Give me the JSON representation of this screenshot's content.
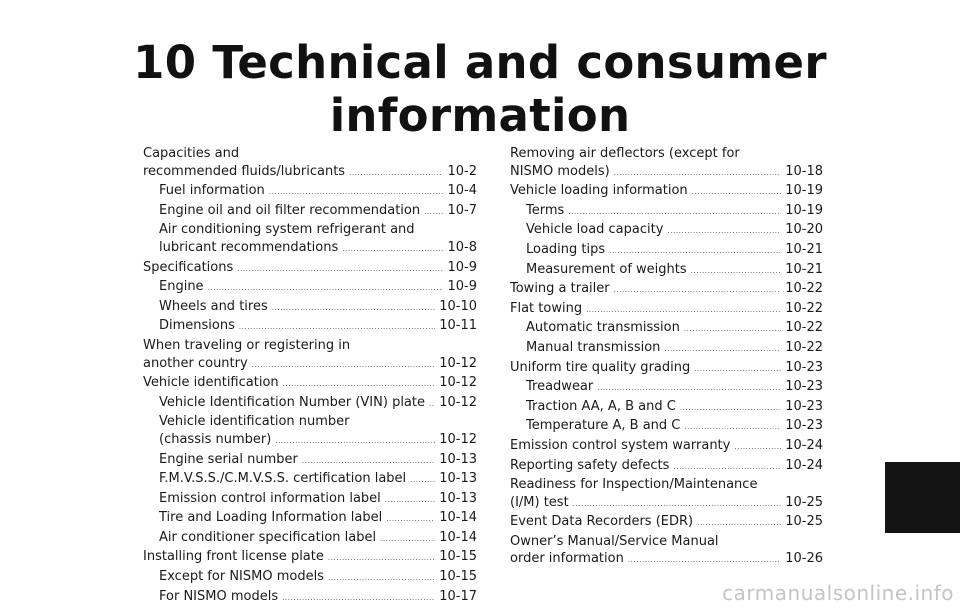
{
  "title": "10 Technical and consumer information",
  "toc": {
    "left": [
      {
        "pre": "Capacities and",
        "text": "recommended fluids/lubricants",
        "page": "10-2",
        "sub": false
      },
      {
        "text": "Fuel information",
        "page": "10-4",
        "sub": true
      },
      {
        "text": "Engine oil and oil filter recommendation",
        "page": "10-7",
        "sub": true
      },
      {
        "pre": "Air conditioning system refrigerant and",
        "text": "lubricant recommendations",
        "page": "10-8",
        "sub": true
      },
      {
        "text": "Specifications",
        "page": "10-9",
        "sub": false
      },
      {
        "text": "Engine",
        "page": "10-9",
        "sub": true
      },
      {
        "text": "Wheels and tires",
        "page": "10-10",
        "sub": true
      },
      {
        "text": "Dimensions",
        "page": "10-11",
        "sub": true
      },
      {
        "pre": "When traveling or registering in",
        "text": "another country",
        "page": "10-12",
        "sub": false
      },
      {
        "text": "Vehicle identification",
        "page": "10-12",
        "sub": false
      },
      {
        "text": "Vehicle Identification Number (VIN) plate",
        "page": "10-12",
        "sub": true
      },
      {
        "pre": "Vehicle identification number",
        "text": "(chassis number)",
        "page": "10-12",
        "sub": true
      },
      {
        "text": "Engine serial number",
        "page": "10-13",
        "sub": true
      },
      {
        "text": "F.M.V.S.S./C.M.V.S.S. certification label",
        "page": "10-13",
        "sub": true
      },
      {
        "text": "Emission control information label",
        "page": "10-13",
        "sub": true
      },
      {
        "text": "Tire and Loading Information label",
        "page": "10-14",
        "sub": true
      },
      {
        "text": "Air conditioner specification label",
        "page": "10-14",
        "sub": true
      },
      {
        "text": "Installing front license plate",
        "page": "10-15",
        "sub": false
      },
      {
        "text": "Except for NISMO models",
        "page": "10-15",
        "sub": true
      },
      {
        "text": "For NISMO models",
        "page": "10-17",
        "sub": true
      }
    ],
    "right": [
      {
        "pre": "Removing air deflectors (except for",
        "text": "NISMO models)",
        "page": "10-18",
        "sub": false
      },
      {
        "text": "Vehicle loading information",
        "page": "10-19",
        "sub": false
      },
      {
        "text": "Terms",
        "page": "10-19",
        "sub": true
      },
      {
        "text": "Vehicle load capacity",
        "page": "10-20",
        "sub": true
      },
      {
        "text": "Loading tips",
        "page": "10-21",
        "sub": true
      },
      {
        "text": "Measurement of weights",
        "page": "10-21",
        "sub": true
      },
      {
        "text": "Towing a trailer",
        "page": "10-22",
        "sub": false
      },
      {
        "text": "Flat towing",
        "page": "10-22",
        "sub": false
      },
      {
        "text": "Automatic transmission",
        "page": "10-22",
        "sub": true
      },
      {
        "text": "Manual transmission",
        "page": "10-22",
        "sub": true
      },
      {
        "text": "Uniform tire quality grading",
        "page": "10-23",
        "sub": false
      },
      {
        "text": "Treadwear",
        "page": "10-23",
        "sub": true
      },
      {
        "text": "Traction AA, A, B and C",
        "page": "10-23",
        "sub": true
      },
      {
        "text": "Temperature A, B and C",
        "page": "10-23",
        "sub": true
      },
      {
        "text": "Emission control system warranty",
        "page": "10-24",
        "sub": false
      },
      {
        "text": "Reporting safety defects",
        "page": "10-24",
        "sub": false
      },
      {
        "pre": "Readiness for Inspection/Maintenance",
        "text": "(I/M) test",
        "page": "10-25",
        "sub": false
      },
      {
        "text": "Event Data Recorders (EDR)",
        "page": "10-25",
        "sub": false
      },
      {
        "pre": "Owner’s Manual/Service Manual",
        "text": "order information",
        "page": "10-26",
        "sub": false
      }
    ]
  },
  "watermark": "carmanualsonline.info",
  "colors": {
    "background": "#ffffff",
    "text": "#1a1a1a",
    "tab": "#141414",
    "watermark": "#c4c4c4"
  }
}
